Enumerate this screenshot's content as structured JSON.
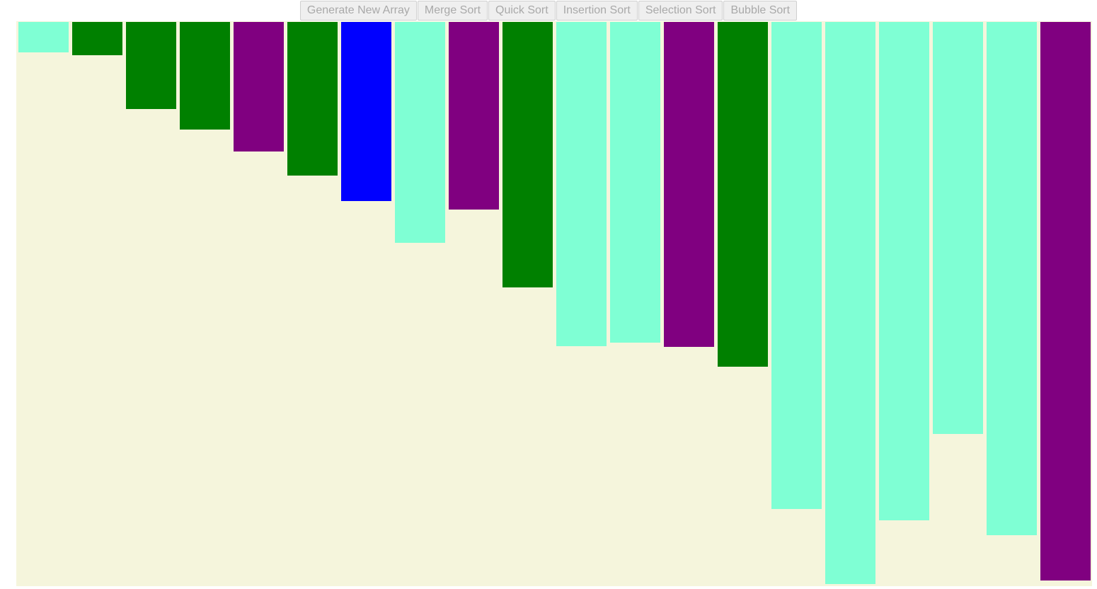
{
  "toolbar": {
    "generate_label": "Generate New Array",
    "merge_label": "Merge Sort",
    "quick_label": "Quick Sort",
    "insertion_label": "Insertion Sort",
    "selection_label": "Selection Sort",
    "bubble_label": "Bubble Sort"
  },
  "array": {
    "colors": {
      "default": "#7fffd4",
      "comparing": "#008000",
      "swapping": "#800080",
      "pivot": "#0000ff"
    },
    "bars": [
      {
        "value": 43,
        "state": "default"
      },
      {
        "value": 47,
        "state": "comparing"
      },
      {
        "value": 123,
        "state": "comparing"
      },
      {
        "value": 152,
        "state": "comparing"
      },
      {
        "value": 183,
        "state": "swapping"
      },
      {
        "value": 217,
        "state": "comparing"
      },
      {
        "value": 253,
        "state": "pivot"
      },
      {
        "value": 312,
        "state": "default"
      },
      {
        "value": 265,
        "state": "swapping"
      },
      {
        "value": 375,
        "state": "comparing"
      },
      {
        "value": 458,
        "state": "default"
      },
      {
        "value": 453,
        "state": "default"
      },
      {
        "value": 459,
        "state": "swapping"
      },
      {
        "value": 487,
        "state": "comparing"
      },
      {
        "value": 688,
        "state": "default"
      },
      {
        "value": 794,
        "state": "default"
      },
      {
        "value": 704,
        "state": "default"
      },
      {
        "value": 582,
        "state": "default"
      },
      {
        "value": 725,
        "state": "default"
      },
      {
        "value": 789,
        "state": "swapping"
      }
    ]
  }
}
